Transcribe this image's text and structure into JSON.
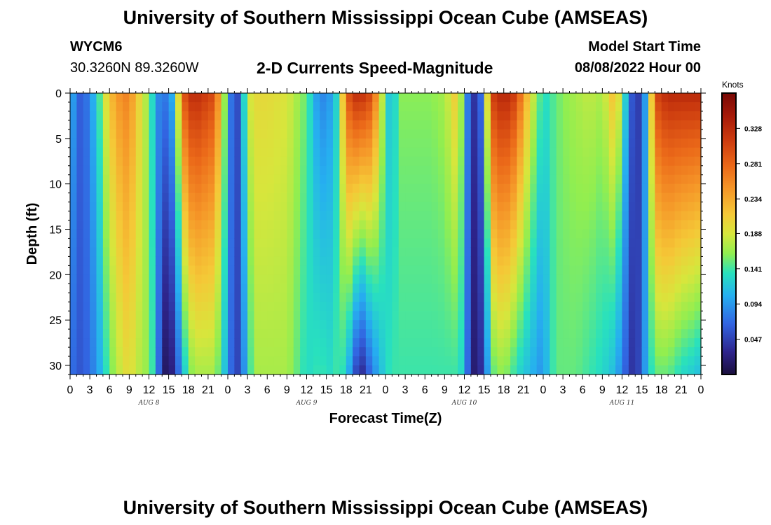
{
  "header": {
    "title": "University of Southern Mississippi Ocean Cube (AMSEAS)",
    "station": "WYCM6",
    "coordinates": "30.3260N  89.3260W",
    "subtitle": "2-D Currents Speed-Magnitude",
    "model_label": "Model Start Time",
    "model_time": "08/08/2022 Hour 00"
  },
  "footer": {
    "title": "University of Southern Mississippi Ocean Cube (AMSEAS)"
  },
  "chart_data": {
    "type": "heatmap",
    "title": "2-D Currents Speed-Magnitude",
    "xlabel": "Forecast Time(Z)",
    "ylabel": "Depth (ft)",
    "x_range_hours": [
      0,
      96
    ],
    "ylim": [
      31,
      0
    ],
    "x_tick_hours": [
      0,
      3,
      6,
      9,
      12,
      15,
      18,
      21,
      24,
      27,
      30,
      33,
      36,
      39,
      42,
      45,
      48,
      51,
      54,
      57,
      60,
      63,
      66,
      69,
      72,
      75,
      78,
      81,
      84,
      87,
      90,
      93,
      96
    ],
    "x_tick_labels": [
      "0",
      "3",
      "6",
      "9",
      "12",
      "15",
      "18",
      "21",
      "0",
      "3",
      "6",
      "9",
      "12",
      "15",
      "18",
      "21",
      "0",
      "3",
      "6",
      "9",
      "12",
      "15",
      "18",
      "21",
      "0",
      "3",
      "6",
      "9",
      "12",
      "15",
      "18",
      "21",
      "0"
    ],
    "day_labels": [
      {
        "hour": 12,
        "label": "AUG 8"
      },
      {
        "hour": 36,
        "label": "AUG 9"
      },
      {
        "hour": 60,
        "label": "AUG 10"
      },
      {
        "hour": 84,
        "label": "AUG 11"
      }
    ],
    "y_ticks": [
      0,
      5,
      10,
      15,
      20,
      25,
      30
    ],
    "y_tick_labels": [
      "0",
      "5",
      "10",
      "15",
      "20",
      "25",
      "30"
    ],
    "colorbar": {
      "title": "Knots",
      "range": [
        0,
        0.375
      ],
      "tick_values": [
        0.328,
        0.281,
        0.234,
        0.188,
        0.141,
        0.094,
        0.047
      ],
      "tick_labels": [
        "0.328",
        "0.281",
        "0.234",
        "0.188",
        "0.141",
        "0.094",
        "0.047"
      ]
    },
    "speed_profile": {
      "note": "Estimated speed (knots) at surface and bottom at sampled forecast hours",
      "hours": [
        0,
        1,
        2,
        4,
        6,
        8,
        9,
        10,
        12,
        13,
        14,
        15,
        16,
        17,
        18,
        19,
        20,
        22,
        24,
        25,
        26,
        27,
        28,
        30,
        33,
        36,
        38,
        40,
        41,
        42,
        43,
        44,
        46,
        48,
        49,
        50,
        51,
        53,
        55,
        57,
        59,
        60,
        61,
        62,
        63,
        64,
        65,
        66,
        67,
        68,
        70,
        72,
        73,
        74,
        75,
        77,
        79,
        81,
        83,
        85,
        86,
        87,
        88,
        89,
        90,
        91,
        92,
        93,
        95,
        96
      ],
      "surface": [
        0.12,
        0.07,
        0.06,
        0.12,
        0.22,
        0.26,
        0.26,
        0.22,
        0.16,
        0.1,
        0.07,
        0.09,
        0.12,
        0.28,
        0.32,
        0.33,
        0.32,
        0.3,
        0.12,
        0.03,
        0.08,
        0.18,
        0.2,
        0.2,
        0.19,
        0.15,
        0.08,
        0.1,
        0.15,
        0.28,
        0.32,
        0.33,
        0.3,
        0.14,
        0.1,
        0.16,
        0.16,
        0.16,
        0.16,
        0.17,
        0.22,
        0.12,
        0.04,
        0.04,
        0.1,
        0.3,
        0.33,
        0.33,
        0.33,
        0.3,
        0.2,
        0.13,
        0.14,
        0.15,
        0.16,
        0.17,
        0.18,
        0.17,
        0.23,
        0.09,
        0.03,
        0.06,
        0.13,
        0.3,
        0.32,
        0.33,
        0.33,
        0.33,
        0.33,
        0.33
      ],
      "bottom": [
        0.08,
        0.06,
        0.06,
        0.09,
        0.15,
        0.19,
        0.2,
        0.18,
        0.16,
        0.12,
        0.02,
        0.01,
        0.04,
        0.1,
        0.15,
        0.17,
        0.17,
        0.17,
        0.1,
        0.04,
        0.06,
        0.12,
        0.17,
        0.17,
        0.17,
        0.13,
        0.14,
        0.13,
        0.15,
        0.12,
        0.08,
        0.02,
        0.08,
        0.13,
        0.14,
        0.14,
        0.14,
        0.14,
        0.14,
        0.14,
        0.14,
        0.12,
        0.02,
        0.02,
        0.05,
        0.14,
        0.16,
        0.16,
        0.15,
        0.13,
        0.11,
        0.09,
        0.13,
        0.15,
        0.15,
        0.15,
        0.14,
        0.13,
        0.11,
        0.05,
        0.03,
        0.07,
        0.12,
        0.15,
        0.15,
        0.15,
        0.14,
        0.13,
        0.12,
        0.11
      ]
    }
  }
}
